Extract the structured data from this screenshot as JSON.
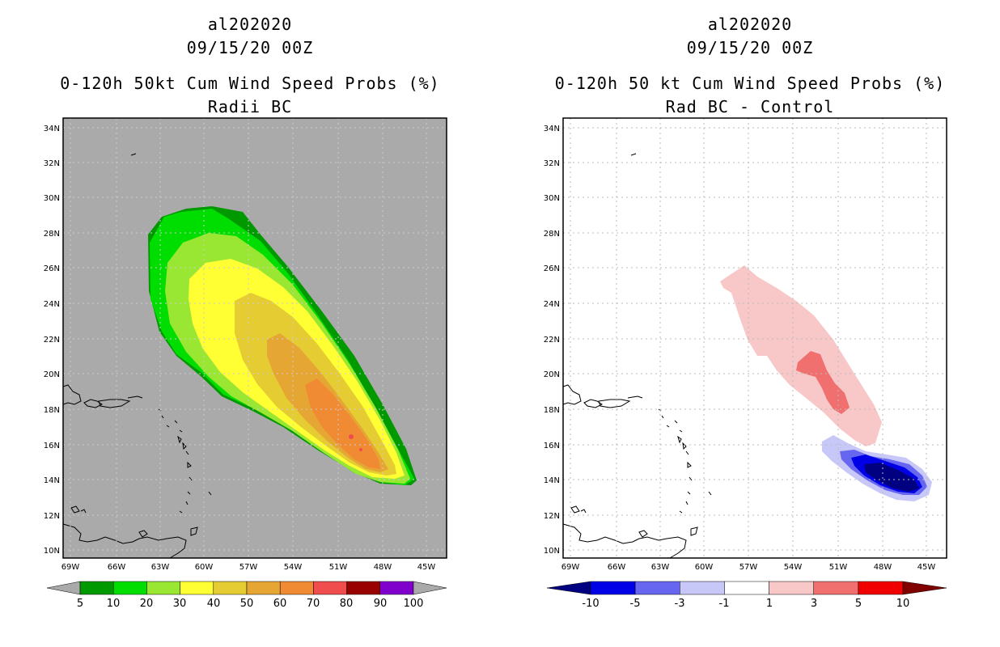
{
  "panels": [
    {
      "storm_id": "al202020",
      "datetime": "09/15/20 00Z",
      "title": "0-120h 50kt Cum Wind Speed Probs (%)",
      "subtitle": "Radii BC",
      "lat_labels": [
        "34N",
        "32N",
        "30N",
        "28N",
        "26N",
        "24N",
        "22N",
        "20N",
        "18N",
        "16N",
        "14N",
        "12N",
        "10N"
      ],
      "lon_labels": [
        "69W",
        "66W",
        "63W",
        "60W",
        "57W",
        "54W",
        "51W",
        "48W",
        "45W"
      ],
      "colorbar": {
        "labels": [
          "5",
          "10",
          "20",
          "30",
          "40",
          "50",
          "60",
          "70",
          "80",
          "90",
          "100"
        ],
        "colors": [
          "#009900",
          "#00dd00",
          "#99e633",
          "#ffff33",
          "#e6cc33",
          "#e6a633",
          "#f08a33",
          "#f04e4e",
          "#990000",
          "#8000cc"
        ],
        "triangle_color": "#aaaaaa"
      },
      "background": "#aaaaaa"
    },
    {
      "storm_id": "al202020",
      "datetime": "09/15/20 00Z",
      "title": "0-120h 50 kt Cum Wind Speed Probs (%)",
      "subtitle": "Rad BC - Control",
      "lat_labels": [
        "34N",
        "32N",
        "30N",
        "28N",
        "26N",
        "24N",
        "22N",
        "20N",
        "18N",
        "16N",
        "14N",
        "12N",
        "10N"
      ],
      "lon_labels": [
        "69W",
        "66W",
        "63W",
        "60W",
        "57W",
        "54W",
        "51W",
        "48W",
        "45W"
      ],
      "colorbar": {
        "labels": [
          "-10",
          "-5",
          "-3",
          "-1",
          "1",
          "3",
          "5",
          "10"
        ],
        "colors": [
          "#0000e6",
          "#6666f0",
          "#c8c8f8",
          "#ffffff",
          "#f8c8c8",
          "#f07070",
          "#f00000"
        ],
        "triangle_left": "#000080",
        "triangle_right": "#800000"
      },
      "background": "#ffffff"
    }
  ]
}
